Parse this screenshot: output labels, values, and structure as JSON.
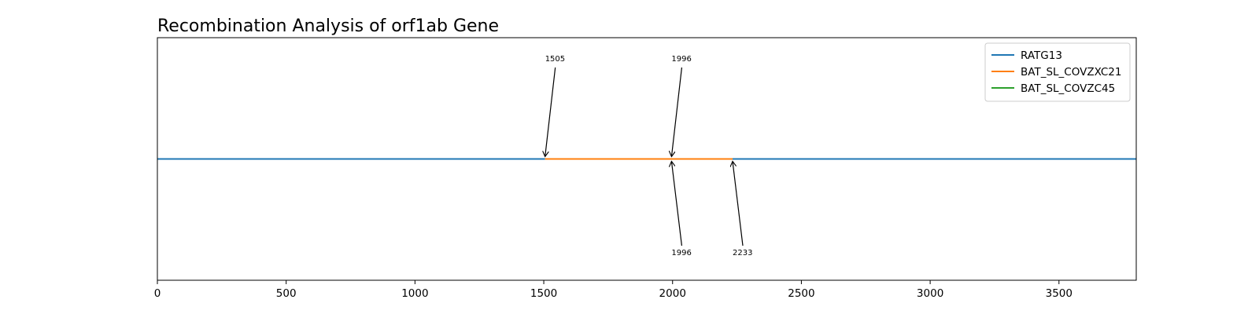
{
  "chart_data": {
    "type": "line",
    "title": "Recombination Analysis of orf1ab Gene",
    "xlabel": "",
    "ylabel": "",
    "xlim": [
      0,
      3800
    ],
    "ylim": [
      -1,
      1
    ],
    "xticks": [
      0,
      500,
      1000,
      1500,
      2000,
      2500,
      3000,
      3500
    ],
    "xtick_labels": [
      "0",
      "500",
      "1000",
      "1500",
      "2000",
      "2500",
      "3000",
      "3500"
    ],
    "yticks": [],
    "grid": false,
    "legend_position": "top-right",
    "series": [
      {
        "name": "RATG13",
        "color": "#1f77b4",
        "segments": [
          {
            "x": [
              0,
              1505
            ],
            "y": [
              0,
              0
            ]
          },
          {
            "x": [
              2233,
              3800
            ],
            "y": [
              0,
              0
            ]
          }
        ]
      },
      {
        "name": "BAT_SL_COVZXC21",
        "color": "#ff7f0e",
        "segments": [
          {
            "x": [
              1505,
              2233
            ],
            "y": [
              0,
              0
            ]
          }
        ]
      },
      {
        "name": "BAT_SL_COVZC45",
        "color": "#2ca02c",
        "segments": []
      }
    ],
    "annotations": [
      {
        "text": "1505",
        "x": 1505,
        "side": "above"
      },
      {
        "text": "1996",
        "x": 1996,
        "side": "above"
      },
      {
        "text": "1996",
        "x": 1996,
        "side": "below"
      },
      {
        "text": "2233",
        "x": 2233,
        "side": "below"
      }
    ]
  }
}
